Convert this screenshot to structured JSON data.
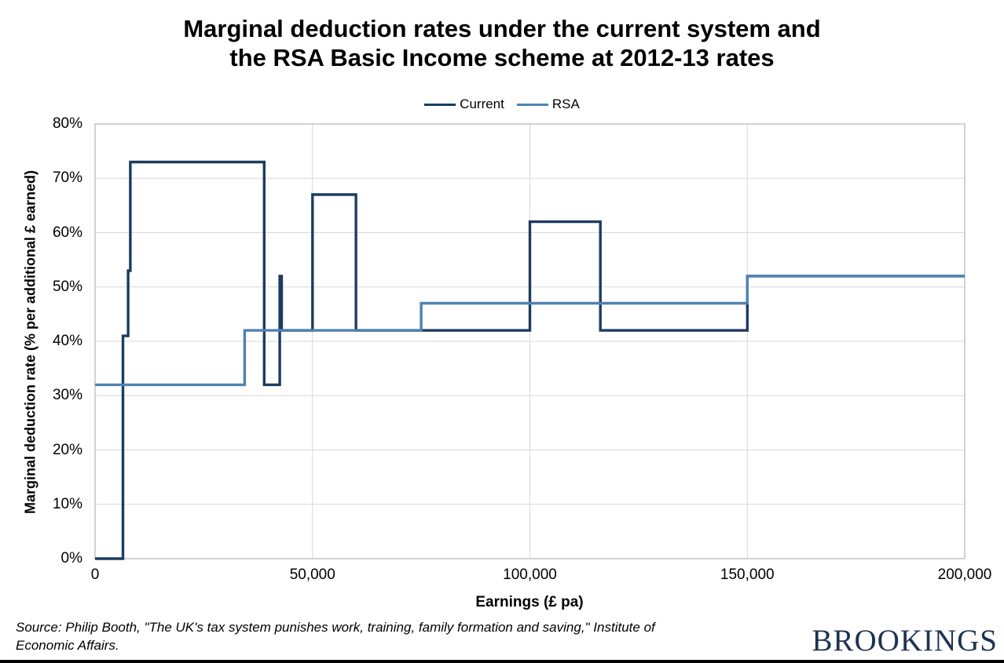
{
  "title": {
    "line1": "Marginal deduction rates under the current system and",
    "line2": "the RSA Basic Income scheme at 2012-13 rates"
  },
  "legend": {
    "items": [
      {
        "label": "Current",
        "color": "#1C3C60"
      },
      {
        "label": "RSA",
        "color": "#5082B1"
      }
    ]
  },
  "chart_data": {
    "type": "line",
    "subtype": "step",
    "title": "Marginal deduction rates under the current system and the RSA Basic Income scheme at 2012-13 rates",
    "xlabel": "Earnings (£ pa)",
    "ylabel": "Marginal deduction rate (% per additional £ earned)",
    "xlim": [
      0,
      200000
    ],
    "ylim": [
      0,
      80
    ],
    "x_ticks": [
      0,
      50000,
      100000,
      150000,
      200000
    ],
    "x_tick_labels": [
      "0",
      "50,000",
      "100,000",
      "150,000",
      "200,000"
    ],
    "y_ticks": [
      0,
      10,
      20,
      30,
      40,
      50,
      60,
      70,
      80
    ],
    "y_tick_labels": [
      "0%",
      "10%",
      "20%",
      "30%",
      "40%",
      "50%",
      "60%",
      "70%",
      "80%"
    ],
    "grid": true,
    "legend_position": "top-center",
    "series": [
      {
        "name": "Current",
        "color": "#1C3C60",
        "points": [
          [
            0,
            0
          ],
          [
            6420,
            0
          ],
          [
            6420,
            41
          ],
          [
            7605,
            41
          ],
          [
            7605,
            53
          ],
          [
            8105,
            53
          ],
          [
            8105,
            73
          ],
          [
            38900,
            73
          ],
          [
            38900,
            32
          ],
          [
            42475,
            32
          ],
          [
            42475,
            52
          ],
          [
            42900,
            52
          ],
          [
            42900,
            42
          ],
          [
            50000,
            42
          ],
          [
            50000,
            67
          ],
          [
            60000,
            67
          ],
          [
            60000,
            42
          ],
          [
            100000,
            42
          ],
          [
            100000,
            62
          ],
          [
            116210,
            62
          ],
          [
            116210,
            42
          ],
          [
            150000,
            42
          ],
          [
            150000,
            52
          ],
          [
            200000,
            52
          ]
        ]
      },
      {
        "name": "RSA",
        "color": "#5082B1",
        "points": [
          [
            0,
            32
          ],
          [
            34400,
            32
          ],
          [
            34400,
            42
          ],
          [
            75000,
            42
          ],
          [
            75000,
            47
          ],
          [
            150000,
            47
          ],
          [
            150000,
            52
          ],
          [
            200000,
            52
          ]
        ]
      }
    ]
  },
  "source": {
    "line1": "Source: Philip Booth, \"The UK's tax system punishes work, training, family formation and saving,\" Institute of",
    "line2": "Economic Affairs."
  },
  "branding": {
    "wordmark": "BROOKINGS"
  }
}
